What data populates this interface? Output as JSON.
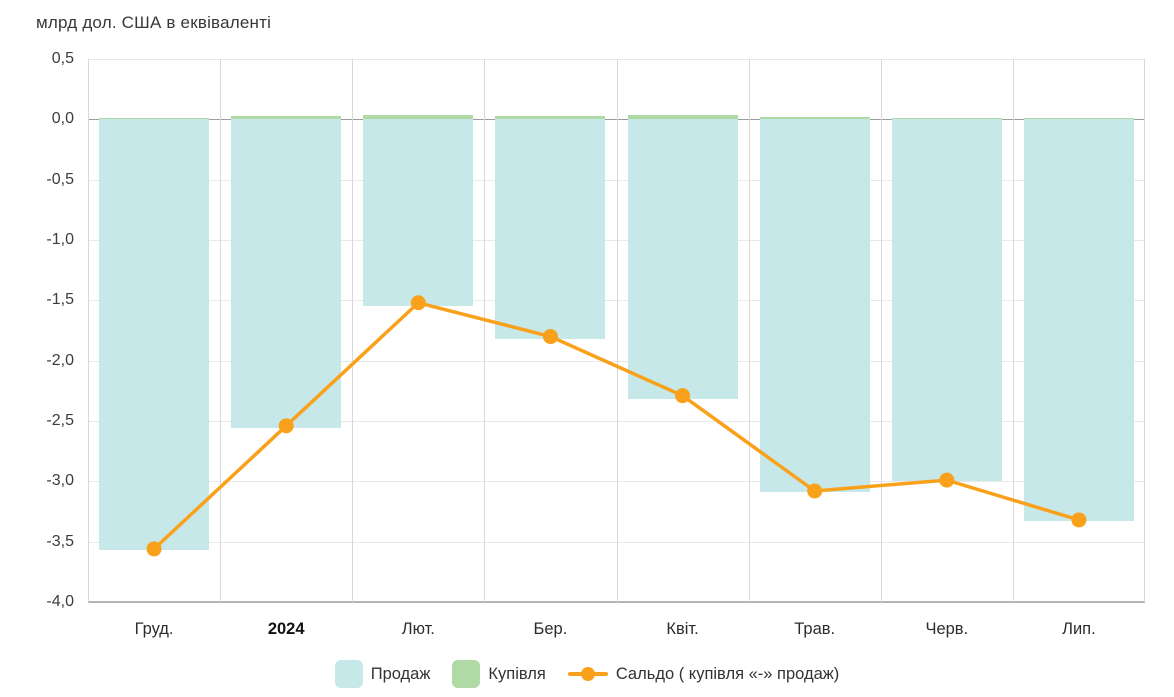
{
  "chart_data": {
    "type": "bar",
    "subtype": "bars-with-line-overlay",
    "title": "млрд дол. США в еквіваленті",
    "xlabel": "",
    "ylabel": "млрд дол. США в еквіваленті",
    "ylim": [
      -4.0,
      0.5
    ],
    "grid": "on",
    "legend_position": "bottom",
    "categories": [
      {
        "label": "Груд.",
        "bold": false
      },
      {
        "label": "2024",
        "bold": true
      },
      {
        "label": "Лют.",
        "bold": false
      },
      {
        "label": "Бер.",
        "bold": false
      },
      {
        "label": "Квіт.",
        "bold": false
      },
      {
        "label": "Трав.",
        "bold": false
      },
      {
        "label": "Черв.",
        "bold": false
      },
      {
        "label": "Лип.",
        "bold": false
      }
    ],
    "y_ticks": [
      {
        "value": 0.5,
        "label": "0,5"
      },
      {
        "value": 0.0,
        "label": "0,0"
      },
      {
        "value": -0.5,
        "label": "-0,5"
      },
      {
        "value": -1.0,
        "label": "-1,0"
      },
      {
        "value": -1.5,
        "label": "-1,5"
      },
      {
        "value": -2.0,
        "label": "-2,0"
      },
      {
        "value": -2.5,
        "label": "-2,5"
      },
      {
        "value": -3.0,
        "label": "-3,0"
      },
      {
        "value": -3.5,
        "label": "-3,5"
      },
      {
        "value": -4.0,
        "label": "-4,0"
      }
    ],
    "series": [
      {
        "name": "Продаж",
        "type": "bar",
        "color": "#c6e8e9",
        "values": [
          -3.57,
          -2.56,
          -1.55,
          -1.82,
          -2.32,
          -3.09,
          -3.0,
          -3.33
        ]
      },
      {
        "name": "Купівля",
        "type": "bar",
        "color": "#afd9a5",
        "values": [
          0.01,
          0.03,
          0.04,
          0.03,
          0.04,
          0.02,
          0.01,
          0.01
        ]
      },
      {
        "name": "Сальдо ( купівля «-» продаж)",
        "type": "line",
        "color": "#f9a11b",
        "values": [
          -3.56,
          -2.54,
          -1.52,
          -1.8,
          -2.29,
          -3.08,
          -2.99,
          -3.32
        ]
      }
    ],
    "legend": [
      "Продаж",
      "Купівля",
      "Сальдо ( купівля «-» продаж)"
    ]
  },
  "colors": {
    "sale_bar": "#c6e8e9",
    "purchase_bar": "#afd9a5",
    "saldo_line": "#f9a11b",
    "grid_h": "#e8e8e8",
    "grid_v": "#d8d8d8",
    "zero_line": "#9c9c9c",
    "axis_line": "#b5b5b5",
    "text": "#3c3c3c"
  }
}
